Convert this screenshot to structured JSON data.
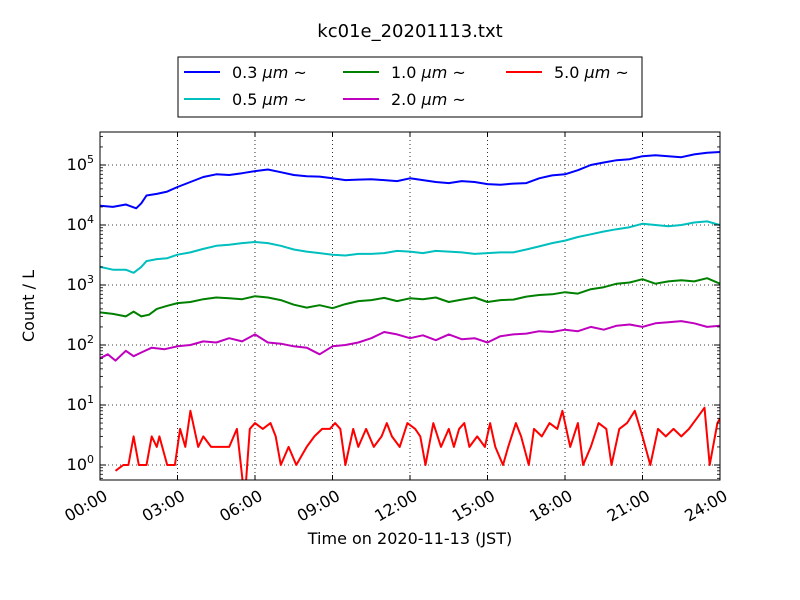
{
  "colors": {
    "s03": "#0000ff",
    "s05": "#00bfbf",
    "s10": "#008000",
    "s20": "#bf00bf",
    "s50": "#ff0000",
    "grid": "#000000",
    "frame": "#000000"
  },
  "chart_data": {
    "type": "line",
    "title": "kc01e_20201113.txt",
    "xlabel": "Time on 2020-11-13 (JST)",
    "ylabel": "Count / L",
    "yscale": "log",
    "xlim": [
      0,
      24
    ],
    "ylim_log10": [
      -0.25,
      5.55
    ],
    "grid": true,
    "legend_placement": "top-center, above plot",
    "x_ticks": [
      {
        "value": 0,
        "label": "00:00"
      },
      {
        "value": 3,
        "label": "03:00"
      },
      {
        "value": 6,
        "label": "06:00"
      },
      {
        "value": 9,
        "label": "09:00"
      },
      {
        "value": 12,
        "label": "12:00"
      },
      {
        "value": 15,
        "label": "15:00"
      },
      {
        "value": 18,
        "label": "18:00"
      },
      {
        "value": 21,
        "label": "21:00"
      },
      {
        "value": 24,
        "label": "24:00"
      }
    ],
    "y_ticks": [
      {
        "exp": 0,
        "base": "10",
        "sup": "0"
      },
      {
        "exp": 1,
        "base": "10",
        "sup": "1"
      },
      {
        "exp": 2,
        "base": "10",
        "sup": "2"
      },
      {
        "exp": 3,
        "base": "10",
        "sup": "3"
      },
      {
        "exp": 4,
        "base": "10",
        "sup": "4"
      },
      {
        "exp": 5,
        "base": "10",
        "sup": "5"
      }
    ],
    "series": [
      {
        "name": "0.3 μm ~",
        "name_size": "0.3",
        "name_unit": "μm",
        "name_tail": "~",
        "color_key": "s03",
        "points": [
          [
            0,
            21000
          ],
          [
            0.5,
            20000
          ],
          [
            1,
            22000
          ],
          [
            1.4,
            19000
          ],
          [
            1.6,
            23000
          ],
          [
            1.8,
            31000
          ],
          [
            2.2,
            33000
          ],
          [
            2.6,
            36000
          ],
          [
            3,
            43000
          ],
          [
            3.5,
            52000
          ],
          [
            4,
            63000
          ],
          [
            4.5,
            70000
          ],
          [
            5,
            68000
          ],
          [
            5.5,
            73000
          ],
          [
            6,
            79000
          ],
          [
            6.5,
            84000
          ],
          [
            7,
            76000
          ],
          [
            7.5,
            68000
          ],
          [
            8,
            65000
          ],
          [
            8.5,
            64000
          ],
          [
            9,
            60000
          ],
          [
            9.5,
            56000
          ],
          [
            10,
            57000
          ],
          [
            10.5,
            58000
          ],
          [
            11,
            56000
          ],
          [
            11.5,
            54000
          ],
          [
            12,
            60000
          ],
          [
            12.5,
            56000
          ],
          [
            13,
            52000
          ],
          [
            13.5,
            50000
          ],
          [
            14,
            54000
          ],
          [
            14.5,
            52000
          ],
          [
            15,
            48000
          ],
          [
            15.5,
            47000
          ],
          [
            16,
            49000
          ],
          [
            16.5,
            50000
          ],
          [
            17,
            60000
          ],
          [
            17.5,
            67000
          ],
          [
            18,
            70000
          ],
          [
            18.5,
            82000
          ],
          [
            19,
            100000
          ],
          [
            19.5,
            110000
          ],
          [
            20,
            120000
          ],
          [
            20.5,
            125000
          ],
          [
            21,
            140000
          ],
          [
            21.5,
            145000
          ],
          [
            22,
            140000
          ],
          [
            22.5,
            135000
          ],
          [
            23,
            150000
          ],
          [
            23.5,
            160000
          ],
          [
            24,
            165000
          ]
        ]
      },
      {
        "name": "0.5 μm ~",
        "name_size": "0.5",
        "name_unit": "μm",
        "name_tail": "~",
        "color_key": "s05",
        "points": [
          [
            0,
            2000
          ],
          [
            0.5,
            1800
          ],
          [
            1,
            1800
          ],
          [
            1.3,
            1600
          ],
          [
            1.6,
            2000
          ],
          [
            1.8,
            2500
          ],
          [
            2.2,
            2700
          ],
          [
            2.6,
            2800
          ],
          [
            3,
            3200
          ],
          [
            3.5,
            3500
          ],
          [
            4,
            4000
          ],
          [
            4.5,
            4500
          ],
          [
            5,
            4700
          ],
          [
            5.5,
            5000
          ],
          [
            6,
            5200
          ],
          [
            6.5,
            5000
          ],
          [
            7,
            4500
          ],
          [
            7.5,
            3900
          ],
          [
            8,
            3600
          ],
          [
            8.5,
            3400
          ],
          [
            9,
            3200
          ],
          [
            9.5,
            3100
          ],
          [
            10,
            3300
          ],
          [
            10.5,
            3300
          ],
          [
            11,
            3400
          ],
          [
            11.5,
            3700
          ],
          [
            12,
            3600
          ],
          [
            12.5,
            3400
          ],
          [
            13,
            3700
          ],
          [
            13.5,
            3600
          ],
          [
            14,
            3500
          ],
          [
            14.5,
            3300
          ],
          [
            15,
            3400
          ],
          [
            15.5,
            3500
          ],
          [
            16,
            3500
          ],
          [
            16.5,
            3900
          ],
          [
            17,
            4400
          ],
          [
            17.5,
            5000
          ],
          [
            18,
            5500
          ],
          [
            18.5,
            6300
          ],
          [
            19,
            7000
          ],
          [
            19.5,
            7800
          ],
          [
            20,
            8500
          ],
          [
            20.5,
            9200
          ],
          [
            21,
            10500
          ],
          [
            21.5,
            10000
          ],
          [
            22,
            9500
          ],
          [
            22.5,
            10000
          ],
          [
            23,
            11000
          ],
          [
            23.5,
            11500
          ],
          [
            24,
            10000
          ]
        ]
      },
      {
        "name": "1.0 μm ~",
        "name_size": "1.0",
        "name_unit": "μm",
        "name_tail": "~",
        "color_key": "s10",
        "points": [
          [
            0,
            350
          ],
          [
            0.5,
            330
          ],
          [
            1,
            300
          ],
          [
            1.3,
            360
          ],
          [
            1.6,
            300
          ],
          [
            1.9,
            320
          ],
          [
            2.2,
            400
          ],
          [
            2.6,
            450
          ],
          [
            3,
            500
          ],
          [
            3.5,
            520
          ],
          [
            4,
            580
          ],
          [
            4.5,
            620
          ],
          [
            5,
            600
          ],
          [
            5.5,
            580
          ],
          [
            6,
            650
          ],
          [
            6.5,
            620
          ],
          [
            7,
            560
          ],
          [
            7.5,
            470
          ],
          [
            8,
            420
          ],
          [
            8.5,
            460
          ],
          [
            9,
            410
          ],
          [
            9.5,
            480
          ],
          [
            10,
            540
          ],
          [
            10.5,
            560
          ],
          [
            11,
            610
          ],
          [
            11.5,
            540
          ],
          [
            12,
            600
          ],
          [
            12.5,
            580
          ],
          [
            13,
            620
          ],
          [
            13.5,
            520
          ],
          [
            14,
            570
          ],
          [
            14.5,
            620
          ],
          [
            15,
            520
          ],
          [
            15.5,
            560
          ],
          [
            16,
            570
          ],
          [
            16.5,
            640
          ],
          [
            17,
            680
          ],
          [
            17.5,
            700
          ],
          [
            18,
            760
          ],
          [
            18.5,
            720
          ],
          [
            19,
            850
          ],
          [
            19.5,
            920
          ],
          [
            20,
            1050
          ],
          [
            20.5,
            1100
          ],
          [
            21,
            1250
          ],
          [
            21.5,
            1050
          ],
          [
            22,
            1150
          ],
          [
            22.5,
            1200
          ],
          [
            23,
            1150
          ],
          [
            23.5,
            1300
          ],
          [
            24,
            1050
          ]
        ]
      },
      {
        "name": "2.0 μm ~",
        "name_size": "2.0",
        "name_unit": "μm",
        "name_tail": "~",
        "color_key": "s20",
        "points": [
          [
            0,
            60
          ],
          [
            0.3,
            70
          ],
          [
            0.6,
            55
          ],
          [
            1,
            80
          ],
          [
            1.3,
            65
          ],
          [
            1.6,
            75
          ],
          [
            2,
            90
          ],
          [
            2.5,
            85
          ],
          [
            3,
            95
          ],
          [
            3.5,
            100
          ],
          [
            4,
            115
          ],
          [
            4.5,
            110
          ],
          [
            5,
            130
          ],
          [
            5.5,
            115
          ],
          [
            6,
            150
          ],
          [
            6.5,
            110
          ],
          [
            7,
            105
          ],
          [
            7.5,
            95
          ],
          [
            8,
            90
          ],
          [
            8.5,
            70
          ],
          [
            9,
            95
          ],
          [
            9.5,
            100
          ],
          [
            10,
            110
          ],
          [
            10.5,
            130
          ],
          [
            11,
            165
          ],
          [
            11.5,
            150
          ],
          [
            12,
            130
          ],
          [
            12.5,
            145
          ],
          [
            13,
            120
          ],
          [
            13.5,
            150
          ],
          [
            14,
            125
          ],
          [
            14.5,
            130
          ],
          [
            15,
            110
          ],
          [
            15.5,
            140
          ],
          [
            16,
            150
          ],
          [
            16.5,
            155
          ],
          [
            17,
            170
          ],
          [
            17.5,
            165
          ],
          [
            18,
            180
          ],
          [
            18.5,
            170
          ],
          [
            19,
            200
          ],
          [
            19.5,
            180
          ],
          [
            20,
            210
          ],
          [
            20.5,
            220
          ],
          [
            21,
            200
          ],
          [
            21.5,
            230
          ],
          [
            22,
            240
          ],
          [
            22.5,
            250
          ],
          [
            23,
            230
          ],
          [
            23.5,
            200
          ],
          [
            24,
            210
          ]
        ]
      },
      {
        "name": "5.0 μm ~",
        "name_size": "5.0",
        "name_unit": "μm",
        "name_tail": "~",
        "color_key": "s50",
        "points": [
          [
            0.6,
            0.8
          ],
          [
            0.9,
            1
          ],
          [
            1.1,
            1
          ],
          [
            1.3,
            3
          ],
          [
            1.5,
            1
          ],
          [
            1.8,
            1
          ],
          [
            2,
            3
          ],
          [
            2.2,
            2
          ],
          [
            2.3,
            3
          ],
          [
            2.6,
            1
          ],
          [
            2.9,
            1
          ],
          [
            3.1,
            4
          ],
          [
            3.3,
            2
          ],
          [
            3.5,
            8
          ],
          [
            3.8,
            2
          ],
          [
            4,
            3
          ],
          [
            4.3,
            2
          ],
          [
            4.7,
            2
          ],
          [
            5,
            2
          ],
          [
            5.3,
            4
          ],
          [
            5.6,
            0.1
          ],
          [
            5.8,
            4
          ],
          [
            6,
            5
          ],
          [
            6.3,
            4
          ],
          [
            6.6,
            5
          ],
          [
            6.8,
            3
          ],
          [
            7,
            1
          ],
          [
            7.3,
            2
          ],
          [
            7.6,
            1
          ],
          [
            8,
            2
          ],
          [
            8.3,
            3
          ],
          [
            8.6,
            4
          ],
          [
            8.9,
            4
          ],
          [
            9.1,
            5
          ],
          [
            9.3,
            4
          ],
          [
            9.5,
            1
          ],
          [
            9.8,
            4
          ],
          [
            10,
            2
          ],
          [
            10.3,
            4
          ],
          [
            10.6,
            2
          ],
          [
            10.9,
            3
          ],
          [
            11.1,
            5
          ],
          [
            11.3,
            3
          ],
          [
            11.6,
            2
          ],
          [
            11.9,
            5
          ],
          [
            12.2,
            4
          ],
          [
            12.4,
            3
          ],
          [
            12.6,
            1
          ],
          [
            12.9,
            5
          ],
          [
            13.2,
            2
          ],
          [
            13.5,
            4
          ],
          [
            13.7,
            2
          ],
          [
            13.9,
            4
          ],
          [
            14.1,
            5
          ],
          [
            14.3,
            2
          ],
          [
            14.6,
            3
          ],
          [
            14.9,
            2
          ],
          [
            15.1,
            5
          ],
          [
            15.3,
            2
          ],
          [
            15.6,
            1
          ],
          [
            15.8,
            2
          ],
          [
            16.1,
            5
          ],
          [
            16.3,
            3
          ],
          [
            16.6,
            1
          ],
          [
            16.8,
            4
          ],
          [
            17.1,
            3
          ],
          [
            17.4,
            5
          ],
          [
            17.7,
            4
          ],
          [
            17.9,
            8
          ],
          [
            18.2,
            2
          ],
          [
            18.5,
            5
          ],
          [
            18.7,
            1
          ],
          [
            19,
            2
          ],
          [
            19.3,
            5
          ],
          [
            19.6,
            4
          ],
          [
            19.8,
            1
          ],
          [
            20.1,
            4
          ],
          [
            20.4,
            5
          ],
          [
            20.7,
            8
          ],
          [
            21,
            3
          ],
          [
            21.3,
            1
          ],
          [
            21.6,
            4
          ],
          [
            21.9,
            3
          ],
          [
            22.2,
            4
          ],
          [
            22.5,
            3
          ],
          [
            22.8,
            4
          ],
          [
            23.1,
            6
          ],
          [
            23.4,
            9
          ],
          [
            23.6,
            1
          ],
          [
            23.9,
            5
          ],
          [
            24,
            6
          ]
        ]
      }
    ]
  }
}
